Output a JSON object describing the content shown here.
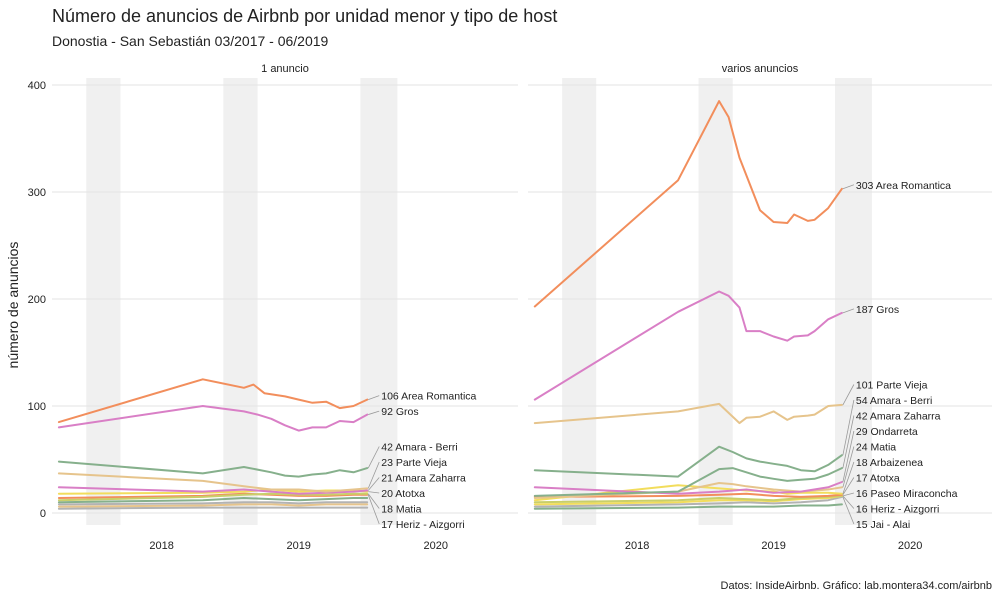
{
  "title": "Número de anuncios de Airbnb por unidad menor y tipo de host",
  "subtitle": "Donostia - San Sebastián 03/2017 - 06/2019",
  "caption": "Datos: InsideAirbnb. Gráfico: lab.montera34.com/airbnb",
  "chart_data": {
    "type": "line",
    "ylabel": "número de anuncios",
    "xlabel": "",
    "ylim": [
      0,
      400
    ],
    "xlim": [
      2017.2,
      2020.6
    ],
    "y_ticks": [
      0,
      100,
      200,
      300,
      400
    ],
    "x_ticks": [
      2018,
      2019,
      2020
    ],
    "x_tick_labels": [
      "2018",
      "2019",
      "2020"
    ],
    "grid": true,
    "shaded_bands": [
      [
        2017.45,
        2017.7
      ],
      [
        2018.45,
        2018.7
      ],
      [
        2019.45,
        2019.72
      ]
    ],
    "colors": {
      "orange": "#f28e5c",
      "pink": "#d97fc6",
      "green": "#86b08c",
      "tan": "#e6c48c",
      "yellow": "#f2dd5c",
      "olive": "#c9cf6a",
      "grey": "#b3b3b3",
      "band": "#f0f0f0",
      "gridline": "#e3e3e3"
    },
    "panels": [
      {
        "title": "1 anuncio",
        "series": [
          {
            "color": "#f28e5c",
            "x": [
              2017.25,
              2018.3,
              2018.6,
              2018.67,
              2018.75,
              2018.9,
              2019.0,
              2019.1,
              2019.2,
              2019.3,
              2019.4,
              2019.5
            ],
            "y": [
              85,
              125,
              117,
              120,
              112,
              109,
              106,
              103,
              104,
              98,
              100,
              106
            ]
          },
          {
            "color": "#d97fc6",
            "x": [
              2017.25,
              2018.3,
              2018.6,
              2018.7,
              2018.8,
              2018.9,
              2019.0,
              2019.1,
              2019.2,
              2019.3,
              2019.4,
              2019.5
            ],
            "y": [
              80,
              100,
              95,
              92,
              88,
              82,
              77,
              80,
              80,
              86,
              85,
              92
            ]
          },
          {
            "color": "#86b08c",
            "x": [
              2017.25,
              2018.3,
              2018.6,
              2018.8,
              2018.9,
              2019.0,
              2019.1,
              2019.2,
              2019.3,
              2019.4,
              2019.5
            ],
            "y": [
              48,
              37,
              43,
              38,
              35,
              34,
              36,
              37,
              40,
              38,
              42
            ]
          },
          {
            "color": "#e6c48c",
            "x": [
              2017.25,
              2018.3,
              2018.6,
              2018.8,
              2019.0,
              2019.2,
              2019.4,
              2019.5
            ],
            "y": [
              37,
              30,
              25,
              22,
              22,
              20,
              22,
              23
            ]
          },
          {
            "color": "#d97fc6",
            "x": [
              2017.25,
              2018.3,
              2018.6,
              2018.8,
              2019.0,
              2019.2,
              2019.4,
              2019.5
            ],
            "y": [
              24,
              20,
              22,
              20,
              18,
              19,
              20,
              21
            ]
          },
          {
            "color": "#f2dd5c",
            "x": [
              2017.25,
              2018.3,
              2018.6,
              2018.8,
              2019.0,
              2019.2,
              2019.4,
              2019.5
            ],
            "y": [
              18,
              19,
              20,
              22,
              20,
              21,
              21,
              20
            ]
          },
          {
            "color": "#c9cf6a",
            "x": [
              2017.25,
              2018.3,
              2018.6,
              2018.8,
              2019.0,
              2019.2,
              2019.4,
              2019.5
            ],
            "y": [
              12,
              15,
              17,
              18,
              17,
              17,
              18,
              18
            ]
          },
          {
            "color": "#f28e5c",
            "x": [
              2017.25,
              2018.3,
              2018.6,
              2018.8,
              2019.0,
              2019.2,
              2019.4,
              2019.5
            ],
            "y": [
              14,
              16,
              18,
              17,
              16,
              16,
              17,
              17
            ]
          },
          {
            "color": "#86b08c",
            "x": [
              2017.25,
              2018.3,
              2018.6,
              2018.8,
              2019.0,
              2019.2,
              2019.4,
              2019.5
            ],
            "y": [
              10,
              12,
              14,
              13,
              12,
              13,
              14,
              14
            ]
          },
          {
            "color": "#b3b3b3",
            "x": [
              2017.25,
              2018.3,
              2018.6,
              2018.8,
              2019.0,
              2019.2,
              2019.4,
              2019.5
            ],
            "y": [
              8,
              9,
              10,
              10,
              9,
              10,
              10,
              10
            ]
          },
          {
            "color": "#e6c48c",
            "x": [
              2017.25,
              2018.3,
              2018.6,
              2018.8,
              2019.0,
              2019.2,
              2019.4,
              2019.5
            ],
            "y": [
              6,
              7,
              8,
              8,
              7,
              8,
              8,
              8
            ]
          },
          {
            "color": "#b3b3b3",
            "x": [
              2017.25,
              2018.3,
              2018.6,
              2018.8,
              2019.0,
              2019.2,
              2019.4,
              2019.5
            ],
            "y": [
              4,
              5,
              5,
              5,
              5,
              5,
              5,
              5
            ]
          }
        ],
        "end_labels": [
          {
            "text": "106 Area Romantica",
            "y": 106
          },
          {
            "text": "92 Gros",
            "y": 92
          },
          {
            "text": "42 Amara - Berri",
            "y": 42
          },
          {
            "text": "23 Parte Vieja",
            "y": 23
          },
          {
            "text": "21 Amara Zaharra",
            "y": 21
          },
          {
            "text": "20 Atotxa",
            "y": 20
          },
          {
            "text": "18 Matia",
            "y": 18
          },
          {
            "text": "17 Heriz - Aizgorri",
            "y": 17
          }
        ]
      },
      {
        "title": "varios anuncios",
        "series": [
          {
            "color": "#f28e5c",
            "x": [
              2017.25,
              2018.3,
              2018.6,
              2018.67,
              2018.75,
              2018.9,
              2019.0,
              2019.1,
              2019.15,
              2019.25,
              2019.3,
              2019.4,
              2019.5
            ],
            "y": [
              193,
              311,
              385,
              370,
              332,
              283,
              272,
              271,
              279,
              273,
              274,
              285,
              303
            ]
          },
          {
            "color": "#d97fc6",
            "x": [
              2017.25,
              2018.3,
              2018.6,
              2018.67,
              2018.75,
              2018.8,
              2018.9,
              2019.0,
              2019.1,
              2019.15,
              2019.25,
              2019.3,
              2019.4,
              2019.5
            ],
            "y": [
              106,
              188,
              207,
              203,
              192,
              170,
              170,
              165,
              161,
              165,
              166,
              170,
              181,
              187
            ]
          },
          {
            "color": "#e6c48c",
            "x": [
              2017.25,
              2018.3,
              2018.6,
              2018.75,
              2018.8,
              2018.9,
              2019.0,
              2019.1,
              2019.15,
              2019.25,
              2019.3,
              2019.4,
              2019.5
            ],
            "y": [
              84,
              95,
              102,
              84,
              89,
              90,
              95,
              87,
              90,
              91,
              92,
              100,
              101
            ]
          },
          {
            "color": "#86b08c",
            "x": [
              2017.25,
              2018.3,
              2018.6,
              2018.7,
              2018.8,
              2018.9,
              2019.0,
              2019.1,
              2019.2,
              2019.3,
              2019.4,
              2019.5
            ],
            "y": [
              40,
              34,
              62,
              57,
              51,
              48,
              46,
              44,
              40,
              39,
              45,
              54
            ]
          },
          {
            "color": "#86b08c",
            "x": [
              2017.25,
              2018.3,
              2018.6,
              2018.7,
              2018.8,
              2018.9,
              2019.0,
              2019.1,
              2019.2,
              2019.3,
              2019.4,
              2019.5
            ],
            "y": [
              16,
              20,
              41,
              42,
              38,
              34,
              32,
              30,
              31,
              32,
              36,
              42
            ]
          },
          {
            "color": "#d97fc6",
            "x": [
              2017.25,
              2018.3,
              2018.6,
              2018.8,
              2019.0,
              2019.2,
              2019.4,
              2019.5
            ],
            "y": [
              24,
              18,
              20,
              22,
              19,
              20,
              24,
              29
            ]
          },
          {
            "color": "#e6c48c",
            "x": [
              2017.25,
              2018.3,
              2018.6,
              2018.7,
              2018.8,
              2019.0,
              2019.2,
              2019.4,
              2019.5
            ],
            "y": [
              14,
              20,
              28,
              27,
              25,
              22,
              20,
              22,
              24
            ]
          },
          {
            "color": "#f2dd5c",
            "x": [
              2017.25,
              2018.3,
              2018.6,
              2018.8,
              2019.0,
              2019.1,
              2019.2,
              2019.4,
              2019.5
            ],
            "y": [
              12,
              26,
              23,
              21,
              20,
              18,
              19,
              19,
              18
            ]
          },
          {
            "color": "#f28e5c",
            "x": [
              2017.25,
              2018.3,
              2018.6,
              2018.8,
              2019.0,
              2019.2,
              2019.4,
              2019.5
            ],
            "y": [
              15,
              16,
              17,
              18,
              16,
              15,
              16,
              17
            ]
          },
          {
            "color": "#c9cf6a",
            "x": [
              2017.25,
              2018.3,
              2018.6,
              2018.8,
              2019.0,
              2019.2,
              2019.4,
              2019.5
            ],
            "y": [
              10,
              12,
              14,
              13,
              12,
              14,
              15,
              16
            ]
          },
          {
            "color": "#f2dd5c",
            "x": [
              2017.25,
              2018.3,
              2018.6,
              2018.8,
              2019.0,
              2019.2,
              2019.4,
              2019.5
            ],
            "y": [
              8,
              10,
              12,
              12,
              11,
              13,
              14,
              16
            ]
          },
          {
            "color": "#b3b3b3",
            "x": [
              2017.25,
              2018.3,
              2018.6,
              2018.8,
              2019.0,
              2019.2,
              2019.4,
              2019.5
            ],
            "y": [
              6,
              8,
              9,
              10,
              9,
              10,
              12,
              15
            ]
          },
          {
            "color": "#86b08c",
            "x": [
              2017.25,
              2018.3,
              2018.6,
              2018.8,
              2019.0,
              2019.2,
              2019.4,
              2019.5
            ],
            "y": [
              4,
              5,
              6,
              6,
              6,
              7,
              7,
              8
            ]
          }
        ],
        "end_labels": [
          {
            "text": "303 Area Romantica",
            "y": 303
          },
          {
            "text": "187 Gros",
            "y": 187
          },
          {
            "text": "101 Parte Vieja",
            "y": 101
          },
          {
            "text": "54 Amara - Berri",
            "y": 54
          },
          {
            "text": "42 Amara Zaharra",
            "y": 42
          },
          {
            "text": "29 Ondarreta",
            "y": 29
          },
          {
            "text": "24 Matia",
            "y": 24
          },
          {
            "text": "18 Arbaizenea",
            "y": 18
          },
          {
            "text": "17 Atotxa",
            "y": 17
          },
          {
            "text": "16 Paseo Miraconcha",
            "y": 16
          },
          {
            "text": "16 Heriz - Aizgorri",
            "y": 16
          },
          {
            "text": "15 Jai - Alai",
            "y": 15
          }
        ]
      }
    ]
  }
}
